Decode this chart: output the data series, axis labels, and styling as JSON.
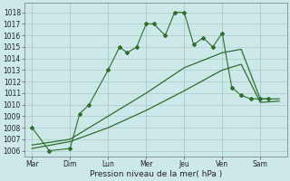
{
  "background_color": "#cce8e8",
  "grid_color": "#aacccc",
  "line_color": "#2d6e2d",
  "xlabel": "Pression niveau de la mer( hPa )",
  "ylim": [
    1005.5,
    1018.8
  ],
  "yticks": [
    1006,
    1007,
    1008,
    1009,
    1010,
    1011,
    1012,
    1013,
    1014,
    1015,
    1016,
    1017,
    1018
  ],
  "x_labels": [
    "Mar",
    "Dim",
    "Lun",
    "Mer",
    "Jeu",
    "Ven",
    "Sam"
  ],
  "x_ticks": [
    0,
    1,
    2,
    3,
    4,
    5,
    6
  ],
  "figsize": [
    3.2,
    2.0
  ],
  "dpi": 100,
  "s1_x": [
    0,
    0.45,
    1,
    1.25,
    1.5,
    2,
    2.3,
    2.5,
    2.75,
    3,
    3.2,
    3.5,
    3.75,
    4,
    4.25,
    4.5,
    4.75,
    5,
    5.25,
    5.5,
    5.75,
    6,
    6.2
  ],
  "s1_y": [
    1008,
    1006,
    1006.2,
    1009.2,
    1010,
    1013,
    1015,
    1014.5,
    1015,
    1017,
    1017,
    1016,
    1018,
    1018,
    1015.2,
    1015.8,
    1015,
    1016.2,
    1011.5,
    1010.8,
    1010.5,
    1010.5,
    1010.5
  ],
  "s2_x": [
    0,
    1,
    2,
    3,
    4,
    5,
    5.5,
    6,
    6.5
  ],
  "s2_y": [
    1006.5,
    1007,
    1009,
    1011,
    1013.2,
    1014.5,
    1014.8,
    1010.5,
    1010.5
  ],
  "s3_x": [
    0,
    1,
    2,
    3,
    4,
    5,
    5.5,
    6,
    6.5
  ],
  "s3_y": [
    1006.2,
    1006.8,
    1008.0,
    1009.5,
    1011.2,
    1013.0,
    1013.5,
    1010.2,
    1010.3
  ]
}
